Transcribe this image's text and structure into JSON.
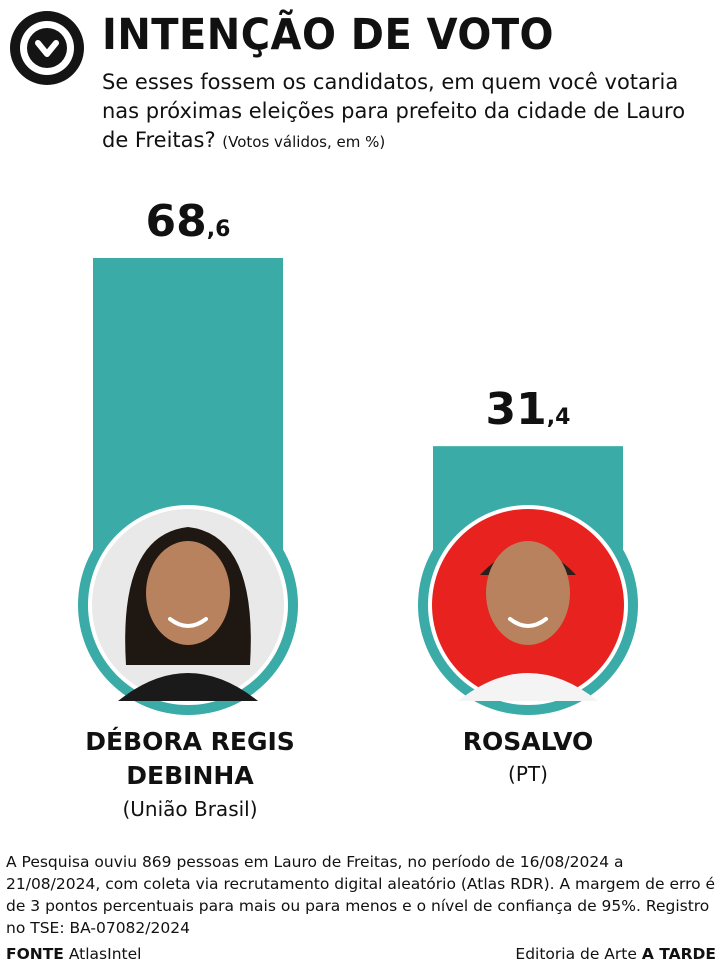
{
  "header": {
    "logo_icon": "check-circle-icon",
    "title": "INTENÇÃO DE VOTO",
    "subtitle": "Se esses fossem os candidatos, em quem você votaria nas próximas eleições para prefeito da cidade de Lauro de Freitas?",
    "subtitle_note": "(Votos válidos, em %)"
  },
  "chart_data": {
    "type": "bar",
    "categories": [
      "DÉBORA REGIS DEBINHA",
      "ROSALVO"
    ],
    "values": [
      68.6,
      31.4
    ],
    "value_labels": [
      {
        "integer": "68",
        "decimal": ",6"
      },
      {
        "integer": "31",
        "decimal": ",4"
      }
    ],
    "ylim": [
      0,
      68.6
    ],
    "grid": false,
    "bar_color": "#3aaba7",
    "title": "",
    "xlabel": "",
    "ylabel": ""
  },
  "candidates": [
    {
      "name_line1": "DÉBORA REGIS",
      "name_line2": "DEBINHA",
      "party": "(União Brasil)",
      "photo_background": "#e9e9e9"
    },
    {
      "name_line1": "ROSALVO",
      "name_line2": "",
      "party": "(PT)",
      "photo_background": "#e8231f"
    }
  ],
  "footnote": "A Pesquisa ouviu 869 pessoas em Lauro de Freitas, no período de 16/08/2024 a 21/08/2024, com coleta via recrutamento digital aleatório (Atlas RDR). A margem de erro é de 3 pontos percentuais para mais ou para menos e o nível de confiança de 95%. Registro no TSE: BA-07082/2024",
  "footer": {
    "source_label": "FONTE",
    "source_value": "AtlasIntel",
    "credit_prefix": "Editoria de Arte",
    "credit_brand": "A TARDE"
  },
  "colors": {
    "accent": "#3aaba7",
    "text": "#111111"
  }
}
